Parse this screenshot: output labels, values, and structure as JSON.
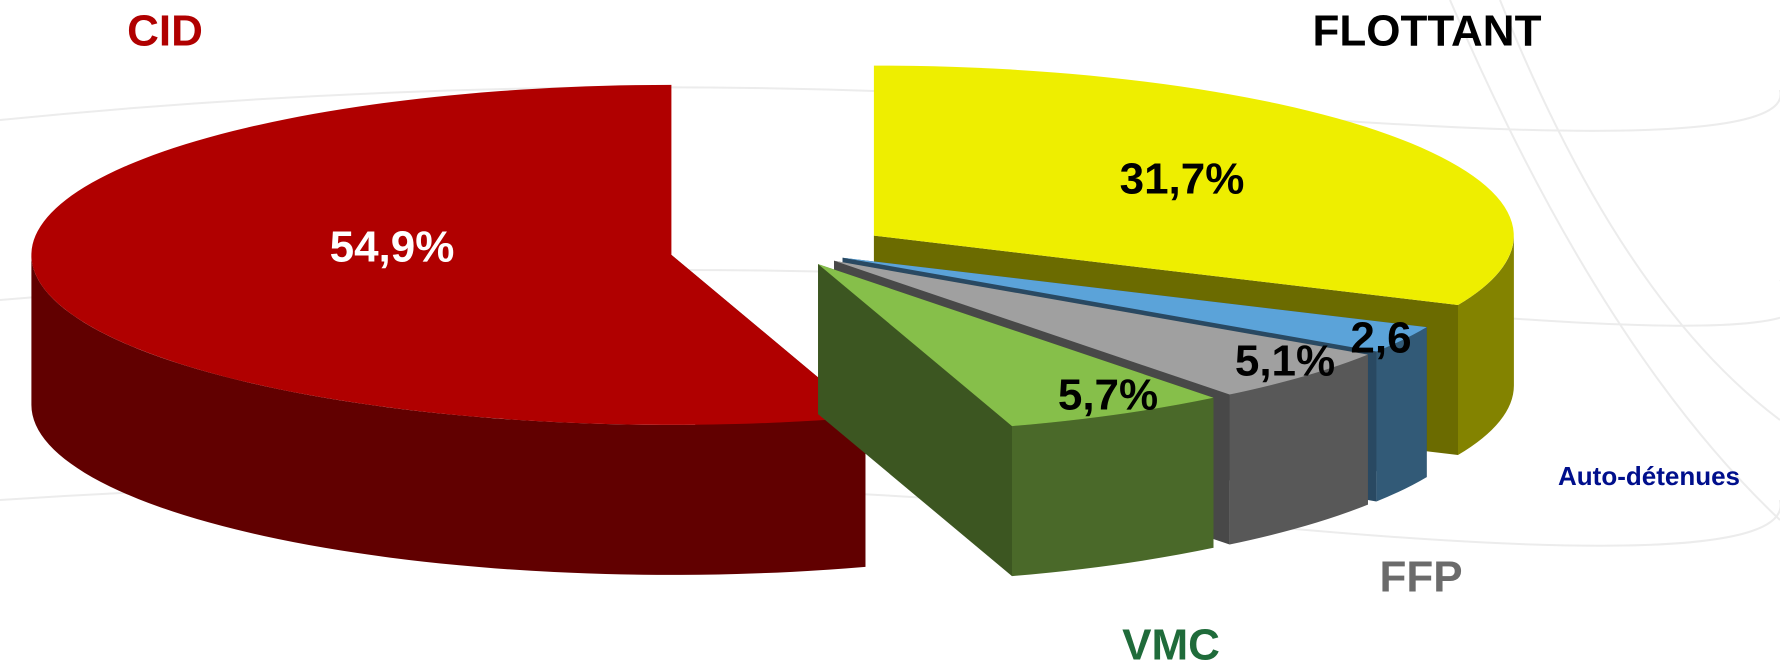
{
  "chart_data": {
    "type": "pie",
    "categories": [
      "FLOTTANT",
      "Auto-détenues",
      "FFP",
      "VMC",
      "CID"
    ],
    "values": [
      31.7,
      2.6,
      5.1,
      5.7,
      54.9
    ],
    "value_labels": [
      "31,7%",
      "2,6",
      "5,1%",
      "5,7%",
      "54,9%"
    ],
    "colors": [
      "#eeee00",
      "#5ba3d9",
      "#a0a0a0",
      "#86bf4a",
      "#b00000"
    ]
  }
}
